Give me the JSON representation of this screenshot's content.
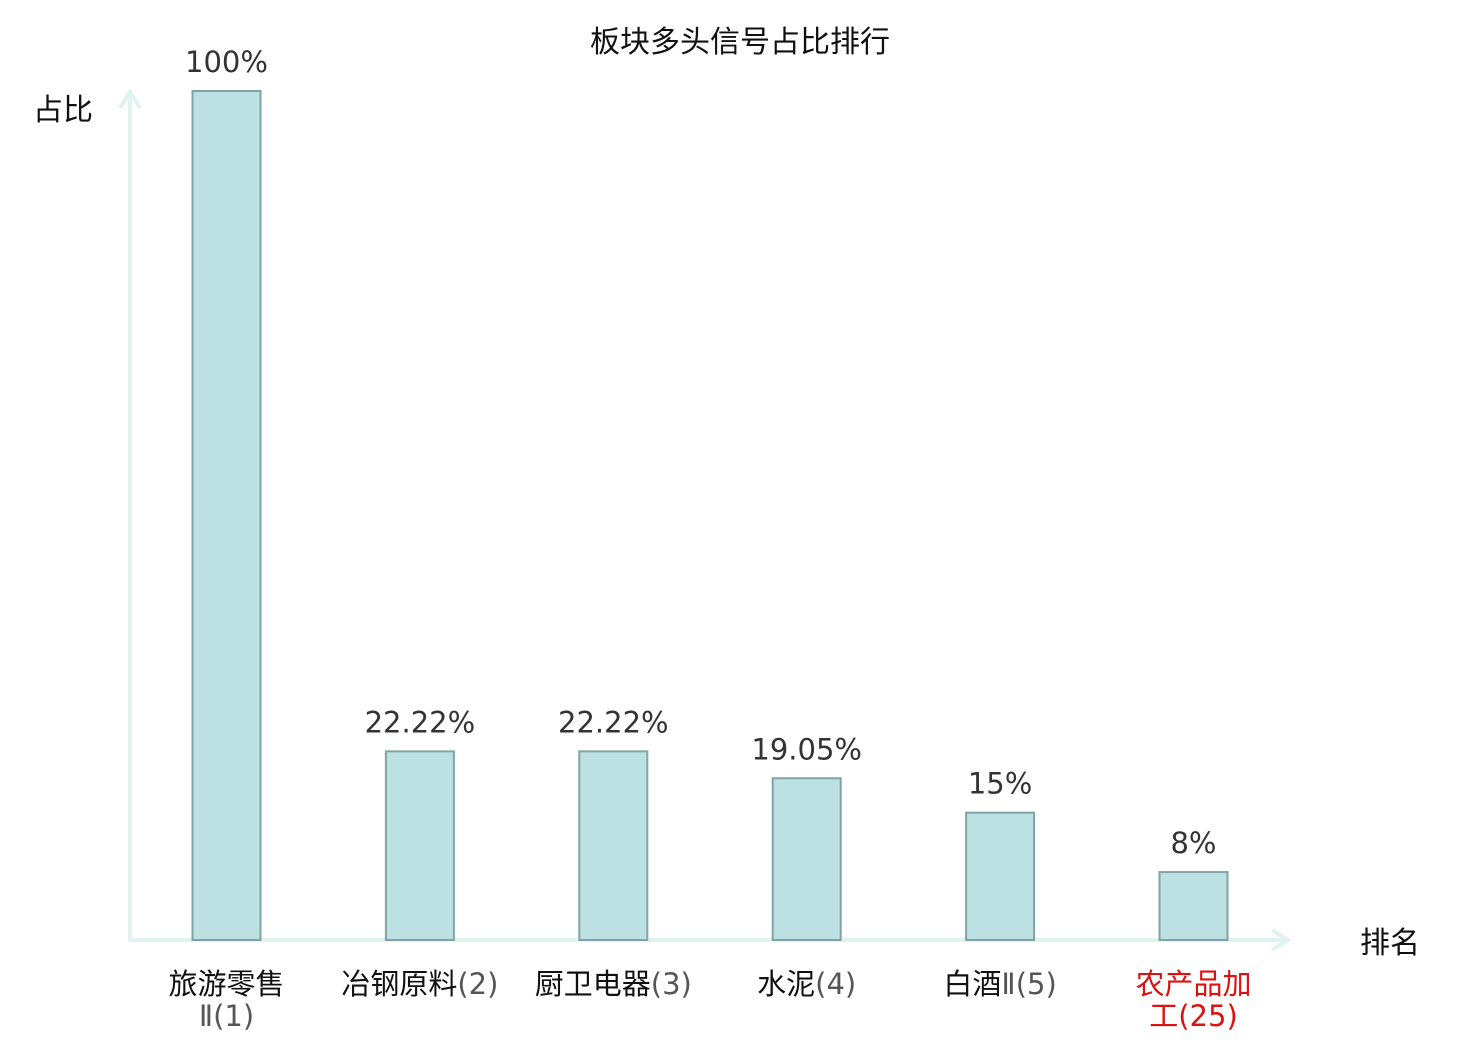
{
  "chart_data": {
    "type": "bar",
    "title": "板块多头信号占比排行",
    "ylabel": "占比",
    "xlabel": "排名",
    "ylim": [
      0,
      100
    ],
    "grid": false,
    "categories": [
      {
        "lines": [
          {
            "name": "旅游零售",
            "rank": ""
          },
          {
            "name": "",
            "rank": "Ⅱ(1)"
          }
        ],
        "highlight": false
      },
      {
        "lines": [
          {
            "name": "冶钢原料",
            "rank": "(2)"
          }
        ],
        "highlight": false
      },
      {
        "lines": [
          {
            "name": "厨卫电器",
            "rank": "(3)"
          }
        ],
        "highlight": false
      },
      {
        "lines": [
          {
            "name": "水泥",
            "rank": "(4)"
          }
        ],
        "highlight": false
      },
      {
        "lines": [
          {
            "name": "白酒",
            "rank": "Ⅱ(5)"
          }
        ],
        "highlight": false
      },
      {
        "lines": [
          {
            "name": "农产品加",
            "rank": ""
          },
          {
            "name": "工",
            "rank": "(25)"
          }
        ],
        "highlight": true
      }
    ],
    "values": [
      100,
      22.22,
      22.22,
      19.05,
      15,
      8
    ],
    "value_labels": [
      "100%",
      "22.22%",
      "22.22%",
      "19.05%",
      "15%",
      "8%"
    ],
    "colors": {
      "bar": "#bde0e3",
      "bar_stroke": "#7fa3a6",
      "axis": "#e0f3f1",
      "highlight": "#dd1111"
    }
  }
}
